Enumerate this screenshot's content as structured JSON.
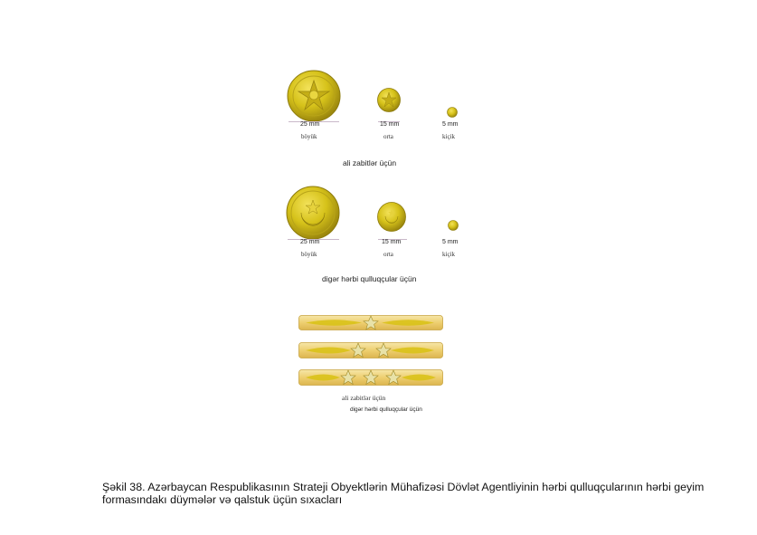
{
  "rows": [
    {
      "buttons": [
        {
          "size": "25 mm",
          "name": "böyük"
        },
        {
          "size": "15 mm",
          "name": "orta"
        },
        {
          "size": "5 mm",
          "name": "kiçik"
        }
      ],
      "title": "ali zabitlər üçün"
    },
    {
      "buttons": [
        {
          "size": "25 mm",
          "name": "böyük"
        },
        {
          "size": "15 mm",
          "name": "orta"
        },
        {
          "size": "5 mm",
          "name": "kiçik"
        }
      ],
      "title": "digər hərbi qulluqçular üçün"
    }
  ],
  "tie_clips": {
    "label_1": "ali zabitlər üçün",
    "label_2": "digər hərbi qulluqçular üçün"
  },
  "caption": "Şəkil 38. Azərbaycan Respublikasının Strateji Obyektlərin Mühafizəsi Dövlət Agentliyinin hərbi qulluqçularının hərbi geyim formasındakı düymələr və qalstuk üçün sıxacları",
  "colors": {
    "gold": "#d6c21a",
    "gold_dark": "#a99511",
    "clip": "#f1d88a"
  }
}
